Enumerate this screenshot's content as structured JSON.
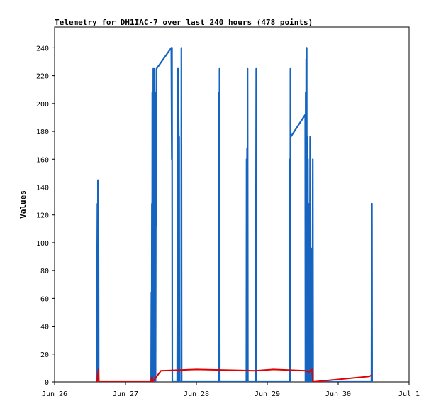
{
  "chart_data": {
    "type": "line",
    "title": "Telemetry for DH1IAC-7 over last 240 hours (478 points)",
    "xlabel": "",
    "ylabel": "Values",
    "xlim": [
      "2024-06-26T00:00",
      "2024-07-01T00:00"
    ],
    "ylim": [
      0,
      255
    ],
    "x_tick_labels": [
      "Jun 26",
      "Jun 27",
      "Jun 28",
      "Jun 29",
      "Jun 30",
      "Jul 1"
    ],
    "y_ticks": [
      0,
      20,
      40,
      60,
      80,
      100,
      120,
      140,
      160,
      180,
      200,
      220,
      240
    ],
    "grid": false,
    "series": [
      {
        "color": "#1565c0",
        "points": [
          [
            "2024-06-26T14:20",
            0
          ],
          [
            "2024-06-26T14:25",
            96
          ],
          [
            "2024-06-26T14:30",
            128
          ],
          [
            "2024-06-26T14:35",
            0
          ],
          [
            "2024-06-26T14:40",
            145
          ],
          [
            "2024-06-26T14:45",
            0
          ],
          [
            "2024-06-26T14:50",
            145
          ],
          [
            "2024-06-26T14:55",
            0
          ],
          [
            "2024-06-27T08:40",
            0
          ],
          [
            "2024-06-27T08:45",
            64
          ],
          [
            "2024-06-27T08:50",
            0
          ],
          [
            "2024-06-27T08:55",
            128
          ],
          [
            "2024-06-27T09:00",
            0
          ],
          [
            "2024-06-27T09:05",
            208
          ],
          [
            "2024-06-27T09:10",
            0
          ],
          [
            "2024-06-27T09:15",
            176
          ],
          [
            "2024-06-27T09:20",
            0
          ],
          [
            "2024-06-27T09:25",
            225
          ],
          [
            "2024-06-27T09:30",
            0
          ],
          [
            "2024-06-27T09:40",
            192
          ],
          [
            "2024-06-27T09:45",
            0
          ],
          [
            "2024-06-27T09:50",
            225
          ],
          [
            "2024-06-27T09:55",
            0
          ],
          [
            "2024-06-27T10:05",
            80
          ],
          [
            "2024-06-27T10:10",
            0
          ],
          [
            "2024-06-27T10:20",
            208
          ],
          [
            "2024-06-27T10:25",
            112
          ],
          [
            "2024-06-27T10:30",
            225
          ],
          [
            "2024-06-27T15:30",
            240
          ],
          [
            "2024-06-27T15:40",
            160
          ],
          [
            "2024-06-27T15:45",
            240
          ],
          [
            "2024-06-27T15:50",
            0
          ],
          [
            "2024-06-27T17:30",
            0
          ],
          [
            "2024-06-27T17:35",
            104
          ],
          [
            "2024-06-27T17:40",
            225
          ],
          [
            "2024-06-27T17:45",
            0
          ],
          [
            "2024-06-27T17:55",
            225
          ],
          [
            "2024-06-27T18:05",
            144
          ],
          [
            "2024-06-27T18:10",
            176
          ],
          [
            "2024-06-27T18:15",
            0
          ],
          [
            "2024-06-27T18:50",
            0
          ],
          [
            "2024-06-27T18:55",
            240
          ],
          [
            "2024-06-27T19:00",
            0
          ],
          [
            "2024-06-28T07:35",
            0
          ],
          [
            "2024-06-28T07:40",
            208
          ],
          [
            "2024-06-28T07:45",
            0
          ],
          [
            "2024-06-28T07:50",
            225
          ],
          [
            "2024-06-28T07:55",
            0
          ],
          [
            "2024-06-28T16:55",
            0
          ],
          [
            "2024-06-28T17:00",
            160
          ],
          [
            "2024-06-28T17:05",
            0
          ],
          [
            "2024-06-28T17:10",
            168
          ],
          [
            "2024-06-28T17:15",
            0
          ],
          [
            "2024-06-28T17:20",
            225
          ],
          [
            "2024-06-28T17:25",
            0
          ],
          [
            "2024-06-28T20:05",
            0
          ],
          [
            "2024-06-28T20:10",
            112
          ],
          [
            "2024-06-28T20:15",
            225
          ],
          [
            "2024-06-28T20:20",
            0
          ],
          [
            "2024-06-29T07:35",
            0
          ],
          [
            "2024-06-29T07:40",
            160
          ],
          [
            "2024-06-29T07:45",
            0
          ],
          [
            "2024-06-29T07:50",
            225
          ],
          [
            "2024-06-29T07:55",
            176
          ],
          [
            "2024-06-29T12:50",
            192
          ],
          [
            "2024-06-29T12:55",
            0
          ],
          [
            "2024-06-29T13:00",
            208
          ],
          [
            "2024-06-29T13:05",
            0
          ],
          [
            "2024-06-29T13:10",
            232
          ],
          [
            "2024-06-29T13:15",
            0
          ],
          [
            "2024-06-29T13:20",
            240
          ],
          [
            "2024-06-29T13:25",
            0
          ],
          [
            "2024-06-29T13:35",
            176
          ],
          [
            "2024-06-29T13:40",
            0
          ],
          [
            "2024-06-29T13:45",
            160
          ],
          [
            "2024-06-29T13:50",
            0
          ],
          [
            "2024-06-29T14:00",
            64
          ],
          [
            "2024-06-29T14:05",
            0
          ],
          [
            "2024-06-29T14:10",
            48
          ],
          [
            "2024-06-29T14:15",
            128
          ],
          [
            "2024-06-29T14:20",
            0
          ],
          [
            "2024-06-29T14:30",
            176
          ],
          [
            "2024-06-29T14:35",
            0
          ],
          [
            "2024-06-29T14:40",
            32
          ],
          [
            "2024-06-29T14:45",
            0
          ],
          [
            "2024-06-29T14:55",
            96
          ],
          [
            "2024-06-29T15:00",
            0
          ],
          [
            "2024-06-29T15:10",
            80
          ],
          [
            "2024-06-29T15:15",
            0
          ],
          [
            "2024-06-29T15:25",
            160
          ],
          [
            "2024-06-29T15:30",
            0
          ],
          [
            "2024-06-30T11:15",
            0
          ],
          [
            "2024-06-30T11:20",
            80
          ],
          [
            "2024-06-30T11:25",
            128
          ],
          [
            "2024-06-30T11:30",
            0
          ]
        ]
      },
      {
        "color": "#e00000",
        "points": [
          [
            "2024-06-26T14:20",
            0
          ],
          [
            "2024-06-26T14:50",
            9
          ],
          [
            "2024-06-26T15:00",
            0
          ],
          [
            "2024-06-27T08:40",
            0
          ],
          [
            "2024-06-27T09:00",
            4
          ],
          [
            "2024-06-27T09:10",
            0
          ],
          [
            "2024-06-27T12:00",
            8
          ],
          [
            "2024-06-28T00:00",
            9
          ],
          [
            "2024-06-28T20:00",
            8
          ],
          [
            "2024-06-29T02:00",
            9
          ],
          [
            "2024-06-29T13:00",
            8
          ],
          [
            "2024-06-29T14:00",
            7
          ],
          [
            "2024-06-29T15:10",
            9
          ],
          [
            "2024-06-29T15:25",
            0
          ],
          [
            "2024-06-30T10:30",
            4
          ],
          [
            "2024-06-30T11:25",
            5
          ]
        ]
      }
    ]
  }
}
